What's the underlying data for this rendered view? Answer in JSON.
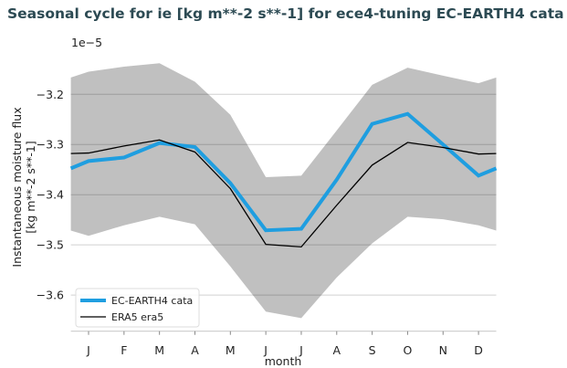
{
  "chart_data": {
    "type": "line",
    "title": "Seasonal cycle for ie [kg m**-2 s**-1] for ece4-tuning EC-EARTH4 cata",
    "xlabel": "month",
    "ylabel": [
      "Instantaneous moisture flux",
      "[kg m**-2 s**-1]"
    ],
    "y_offset_label": "1e−5",
    "categories": [
      "J",
      "F",
      "M",
      "A",
      "M",
      "J",
      "J",
      "A",
      "S",
      "O",
      "N",
      "D"
    ],
    "yticks": [
      -3.2,
      -3.3,
      -3.4,
      -3.5,
      -3.6
    ],
    "ytick_labels": [
      "−3.2",
      "−3.3",
      "−3.4",
      "−3.5",
      "−3.6"
    ],
    "ylim": [
      -3.672,
      -3.128
    ],
    "grid": "horizontal",
    "legend_position": "lower-left",
    "series": [
      {
        "name": "EC-EARTH4 cata",
        "color": "#1f9ee0",
        "values": [
          -3.333,
          -3.326,
          -3.297,
          -3.305,
          -3.377,
          -3.471,
          -3.468,
          -3.37,
          -3.259,
          -3.239,
          -3.3,
          -3.362
        ]
      },
      {
        "name": "ERA5 era5",
        "color": "#000000",
        "values": [
          -3.317,
          -3.303,
          -3.291,
          -3.315,
          -3.388,
          -3.499,
          -3.504,
          -3.421,
          -3.341,
          -3.296,
          -3.306,
          -3.319
        ]
      }
    ],
    "band": {
      "color": "#c0c0c0",
      "upper": [
        -3.155,
        -3.145,
        -3.138,
        -3.175,
        -3.241,
        -3.365,
        -3.362,
        -3.272,
        -3.181,
        -3.147,
        -3.163,
        -3.178
      ],
      "lower": [
        -3.482,
        -3.461,
        -3.444,
        -3.459,
        -3.543,
        -3.633,
        -3.646,
        -3.565,
        -3.497,
        -3.444,
        -3.449,
        -3.461
      ]
    }
  }
}
